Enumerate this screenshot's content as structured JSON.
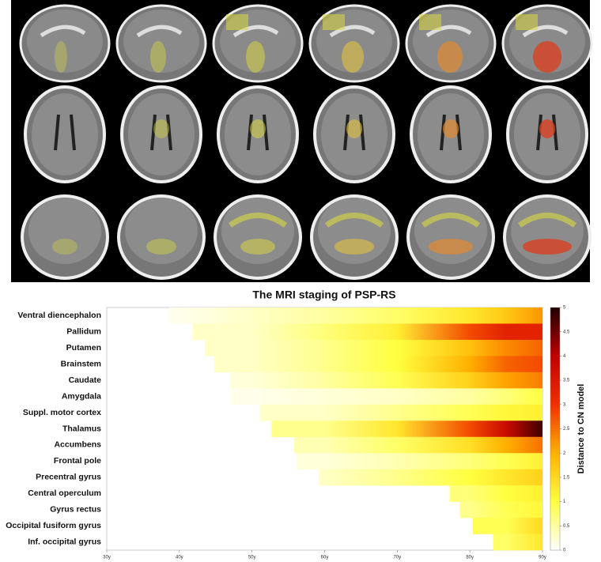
{
  "chart_data": {
    "type": "heatmap",
    "title": "The MRI staging of PSP-RS",
    "categories": [
      "Ventral diencephalon",
      "Pallidum",
      "Putamen",
      "Brainstem",
      "Caudate",
      "Amygdala",
      "Suppl. motor cortex",
      "Thalamus",
      "Accumbens",
      "Frontal pole",
      "Precentral gyrus",
      "Central operculum",
      "Gyrus rectus",
      "Occipital fusiform gyrus",
      "Inf. occipital gyrus"
    ],
    "onset": [
      38.6,
      41.8,
      43.5,
      44.8,
      47.0,
      47.0,
      51.1,
      52.7,
      55.8,
      56.1,
      59.2,
      77.2,
      78.6,
      80.4,
      83.2
    ],
    "x": [
      40,
      50,
      60,
      70,
      80,
      85,
      90
    ],
    "series": [
      {
        "name": "Ventral diencephalon",
        "values": [
          0.1,
          0.3,
          0.5,
          0.8,
          1.3,
          1.7,
          2.2
        ]
      },
      {
        "name": "Pallidum",
        "values": [
          null,
          0.3,
          0.7,
          1.2,
          2.8,
          3.3,
          3.3
        ]
      },
      {
        "name": "Putamen",
        "values": [
          null,
          0.3,
          0.6,
          1.0,
          1.8,
          2.3,
          2.6
        ]
      },
      {
        "name": "Brainstem",
        "values": [
          null,
          0.3,
          0.6,
          1.0,
          2.0,
          2.6,
          2.8
        ]
      },
      {
        "name": "Caudate",
        "values": [
          null,
          0.2,
          0.5,
          0.9,
          1.6,
          2.1,
          2.4
        ]
      },
      {
        "name": "Amygdala",
        "values": [
          null,
          0.1,
          0.2,
          0.3,
          0.5,
          0.7,
          1.0
        ]
      },
      {
        "name": "Suppl. motor cortex",
        "values": [
          null,
          null,
          0.3,
          0.6,
          0.9,
          1.1,
          1.2
        ]
      },
      {
        "name": "Thalamus",
        "values": [
          null,
          null,
          0.6,
          1.3,
          2.8,
          3.8,
          4.8
        ]
      },
      {
        "name": "Accumbens",
        "values": [
          null,
          null,
          0.4,
          0.8,
          1.4,
          2.0,
          2.5
        ]
      },
      {
        "name": "Frontal pole",
        "values": [
          null,
          null,
          0.2,
          0.4,
          0.7,
          0.9,
          1.2
        ]
      },
      {
        "name": "Precentral gyrus",
        "values": [
          null,
          null,
          0.3,
          0.6,
          1.0,
          1.3,
          1.6
        ]
      },
      {
        "name": "Central operculum",
        "values": [
          null,
          null,
          null,
          null,
          0.7,
          1.0,
          1.2
        ]
      },
      {
        "name": "Gyrus rectus",
        "values": [
          null,
          null,
          null,
          null,
          0.6,
          0.9,
          1.1
        ]
      },
      {
        "name": "Occipital fusiform gyrus",
        "values": [
          null,
          null,
          null,
          null,
          null,
          0.9,
          1.5
        ]
      },
      {
        "name": "Inf. occipital gyrus",
        "values": [
          null,
          null,
          null,
          null,
          null,
          0.8,
          1.3
        ]
      }
    ],
    "xlim": [
      30,
      90
    ],
    "xticks": [
      {
        "value": 30,
        "label": "30y"
      },
      {
        "value": 40,
        "label": "40y"
      },
      {
        "value": 50,
        "label": "50y"
      },
      {
        "value": 60,
        "label": "60y"
      },
      {
        "value": 70,
        "label": "70y"
      },
      {
        "value": 80,
        "label": "80y"
      },
      {
        "value": 90,
        "label": "90y"
      }
    ],
    "colorbar_label": "Distance to CN model",
    "clim": [
      0,
      5
    ],
    "cticks": [
      0,
      0.5,
      1,
      1.5,
      2,
      2.5,
      3,
      3.5,
      4,
      4.5,
      5
    ],
    "colormap": [
      "#ffffff",
      "#ffff40",
      "#ffb000",
      "#f03000",
      "#c00000",
      "#200000"
    ]
  }
}
